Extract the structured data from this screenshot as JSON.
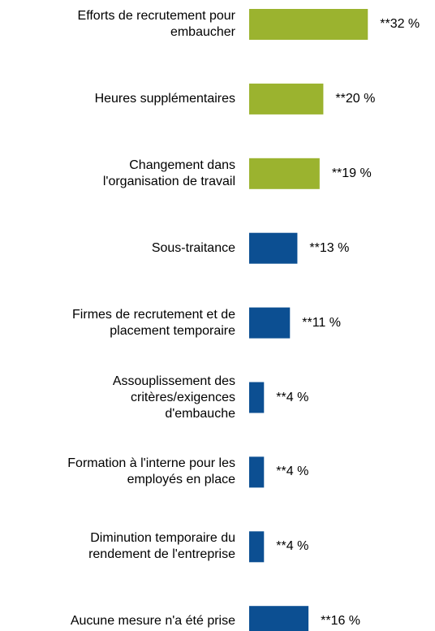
{
  "chart_data": {
    "type": "bar",
    "orientation": "horizontal",
    "categories": [
      "Efforts de recrutement pour\nembaucher",
      "Heures supplémentaires",
      "Changement dans\nl'organisation de travail",
      "Sous-traitance",
      "Firmes de recrutement et de\nplacement temporaire",
      "Assouplissement des\ncritères/exigences\nd'embauche",
      "Formation à l'interne pour les\nemployés en place",
      "Diminution temporaire du\nrendement de l'entreprise",
      "Aucune mesure n'a été prise"
    ],
    "values": [
      32,
      20,
      19,
      13,
      11,
      4,
      4,
      4,
      16
    ],
    "value_labels": [
      "**32 %",
      "**20 %",
      "**19 %",
      "**13 %",
      "**11 %",
      "**4 %",
      "**4 %",
      "**4 %",
      "**16 %"
    ],
    "colors": [
      "#9bb32f",
      "#9bb32f",
      "#9bb32f",
      "#0c4f92",
      "#0c4f92",
      "#0c4f92",
      "#0c4f92",
      "#0c4f92",
      "#0c4f92"
    ]
  }
}
